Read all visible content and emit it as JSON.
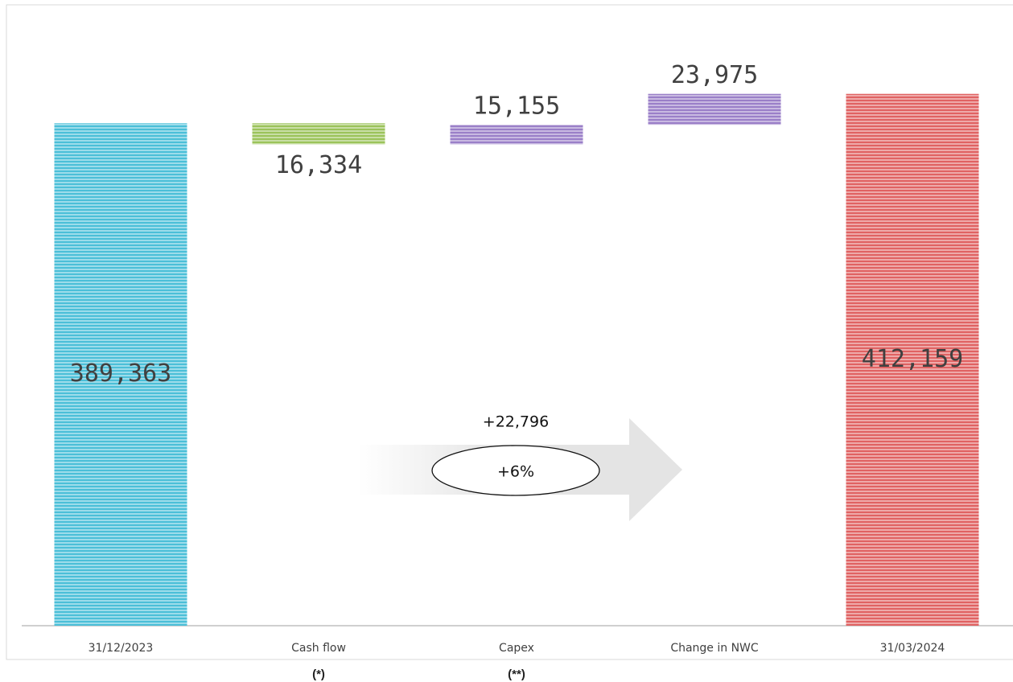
{
  "chart_data": {
    "type": "waterfall",
    "categories": [
      "31/12/2023",
      "Cash flow",
      "Capex",
      "Change in NWC",
      "31/03/2024"
    ],
    "footnotes": [
      null,
      "(*)",
      "(**)",
      null,
      null
    ],
    "measure": [
      "absolute",
      "relative",
      "relative",
      "relative",
      "total"
    ],
    "values": [
      389363,
      -16334,
      15155,
      23975,
      412159
    ],
    "value_labels": [
      "389,363",
      "16,334",
      "15,155",
      "23,975",
      "412,159"
    ],
    "colors": [
      "#4bbfd8",
      "#9bc35a",
      "#9a7fc8",
      "#9a7fc8",
      "#e06262"
    ],
    "ylim": [
      0,
      450000
    ],
    "annotations": {
      "change": "+22,796",
      "change_pct": "+6%"
    }
  }
}
